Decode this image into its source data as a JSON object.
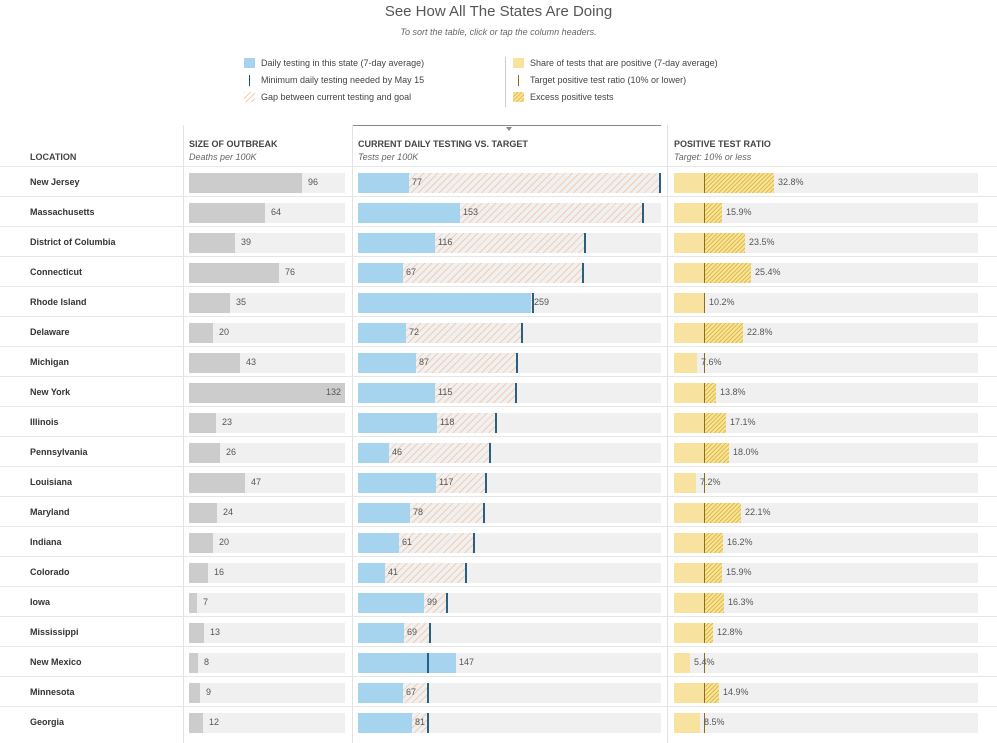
{
  "header": {
    "title": "See How All The States Are Doing",
    "subtitle": "To sort the table, click or tap the column headers."
  },
  "legend": {
    "left": [
      {
        "label": "Daily testing in this state (7-day average)",
        "icon": "blue-swatch"
      },
      {
        "label": "Minimum daily testing needed by May 15",
        "icon": "tick-mark"
      },
      {
        "label": "Gap between current testing and goal",
        "icon": "hatched-swatch"
      }
    ],
    "right": [
      {
        "label": "Share of tests that are positive (7-day average)",
        "icon": "yellow-swatch"
      },
      {
        "label": "Target positive test ratio (10% or lower)",
        "icon": "tick-mark"
      },
      {
        "label": "Excess positive tests",
        "icon": "hatched-yellow-swatch"
      }
    ]
  },
  "columns": {
    "location": {
      "label": "LOCATION"
    },
    "outbreak": {
      "label": "SIZE OF OUTBREAK",
      "sub": "Deaths per 100K"
    },
    "testing": {
      "label": "CURRENT DAILY TESTING VS. TARGET",
      "sub": "Tests per 100K"
    },
    "positive": {
      "label": "POSITIVE TEST RATIO",
      "sub": "Target: 10% or less"
    }
  },
  "colors": {
    "deaths": "#cccccc",
    "testing": "#a6d4ee",
    "gap": "#f3cdb3",
    "positive": "#f8e2a0",
    "excess": "#e0bd3e",
    "testing_tick": "#2b5f80"
  },
  "chart_data": {
    "type": "table",
    "scales": {
      "deaths_max": 132,
      "tests_max": 454,
      "positive_max": 100,
      "positive_target": 10
    },
    "rows": [
      {
        "location": "New Jersey",
        "deaths": 96,
        "tests": 77,
        "target": 454,
        "positive": 32.8,
        "deaths_label": "96",
        "tests_label": "77",
        "positive_label": "32.8%"
      },
      {
        "location": "Massachusetts",
        "deaths": 64,
        "tests": 153,
        "target": 425,
        "positive": 15.9,
        "deaths_label": "64",
        "tests_label": "153",
        "positive_label": "15.9%"
      },
      {
        "location": "District of Columbia",
        "deaths": 39,
        "tests": 116,
        "target": 339,
        "positive": 23.5,
        "deaths_label": "39",
        "tests_label": "116",
        "positive_label": "23.5%"
      },
      {
        "location": "Connecticut",
        "deaths": 76,
        "tests": 67,
        "target": 336,
        "positive": 25.4,
        "deaths_label": "76",
        "tests_label": "67",
        "positive_label": "25.4%"
      },
      {
        "location": "Rhode Island",
        "deaths": 35,
        "tests": 259,
        "target": 260,
        "positive": 10.2,
        "deaths_label": "35",
        "tests_label": "259",
        "positive_label": "10.2%"
      },
      {
        "location": "Delaware",
        "deaths": 20,
        "tests": 72,
        "target": 244,
        "positive": 22.8,
        "deaths_label": "20",
        "tests_label": "72",
        "positive_label": "22.8%"
      },
      {
        "location": "Michigan",
        "deaths": 43,
        "tests": 87,
        "target": 236,
        "positive": 7.6,
        "deaths_label": "43",
        "tests_label": "87",
        "positive_label": "7.6%"
      },
      {
        "location": "New York",
        "deaths": 132,
        "tests": 115,
        "target": 235,
        "positive": 13.8,
        "deaths_label": "132",
        "tests_label": "115",
        "positive_label": "13.8%"
      },
      {
        "location": "Illinois",
        "deaths": 23,
        "tests": 118,
        "target": 205,
        "positive": 17.1,
        "deaths_label": "23",
        "tests_label": "118",
        "positive_label": "17.1%"
      },
      {
        "location": "Pennsylvania",
        "deaths": 26,
        "tests": 46,
        "target": 197,
        "positive": 18.0,
        "deaths_label": "26",
        "tests_label": "46",
        "positive_label": "18.0%"
      },
      {
        "location": "Louisiana",
        "deaths": 47,
        "tests": 117,
        "target": 191,
        "positive": 7.2,
        "deaths_label": "47",
        "tests_label": "117",
        "positive_label": "7.2%"
      },
      {
        "location": "Maryland",
        "deaths": 24,
        "tests": 78,
        "target": 187,
        "positive": 22.1,
        "deaths_label": "24",
        "tests_label": "78",
        "positive_label": "22.1%"
      },
      {
        "location": "Indiana",
        "deaths": 20,
        "tests": 61,
        "target": 173,
        "positive": 16.2,
        "deaths_label": "20",
        "tests_label": "61",
        "positive_label": "16.2%"
      },
      {
        "location": "Colorado",
        "deaths": 16,
        "tests": 41,
        "target": 161,
        "positive": 15.9,
        "deaths_label": "16",
        "tests_label": "41",
        "positive_label": "15.9%"
      },
      {
        "location": "Iowa",
        "deaths": 7,
        "tests": 99,
        "target": 132,
        "positive": 16.3,
        "deaths_label": "7",
        "tests_label": "99",
        "positive_label": "16.3%"
      },
      {
        "location": "Mississippi",
        "deaths": 13,
        "tests": 69,
        "target": 107,
        "positive": 12.8,
        "deaths_label": "13",
        "tests_label": "69",
        "positive_label": "12.8%"
      },
      {
        "location": "New Mexico",
        "deaths": 8,
        "tests": 147,
        "target": 104,
        "positive": 5.4,
        "deaths_label": "8",
        "tests_label": "147",
        "positive_label": "5.4%"
      },
      {
        "location": "Minnesota",
        "deaths": 9,
        "tests": 67,
        "target": 103,
        "positive": 14.9,
        "deaths_label": "9",
        "tests_label": "67",
        "positive_label": "14.9%"
      },
      {
        "location": "Georgia",
        "deaths": 12,
        "tests": 81,
        "target": 103,
        "positive": 8.5,
        "deaths_label": "12",
        "tests_label": "81",
        "positive_label": "8.5%"
      }
    ]
  }
}
